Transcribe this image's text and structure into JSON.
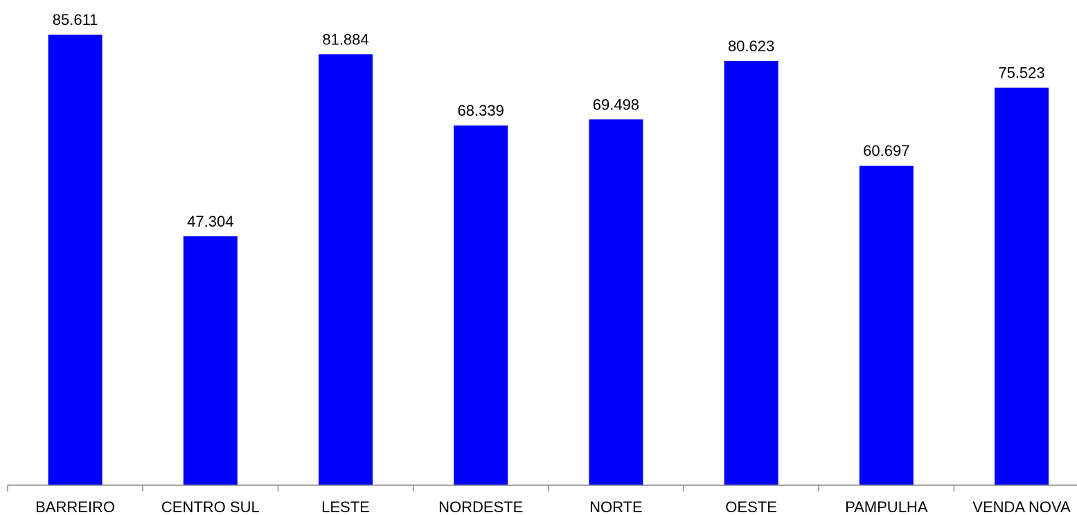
{
  "chart_data": {
    "type": "bar",
    "title": "",
    "xlabel": "",
    "ylabel": "",
    "categories": [
      "BARREIRO",
      "CENTRO SUL",
      "LESTE",
      "NORDESTE",
      "NORTE",
      "OESTE",
      "PAMPULHA",
      "VENDA NOVA"
    ],
    "values": [
      85611,
      47304,
      81884,
      68339,
      69498,
      80623,
      60697,
      75523
    ],
    "value_labels": [
      "85.611",
      "47.304",
      "81.884",
      "68.339",
      "69.498",
      "80.623",
      "60.697",
      "75.523"
    ],
    "ylim": [
      0,
      90000
    ],
    "grid": false,
    "legend": "none",
    "colors": {
      "bar": "#0000ff",
      "axis": "#868686",
      "text": "#000000"
    }
  }
}
